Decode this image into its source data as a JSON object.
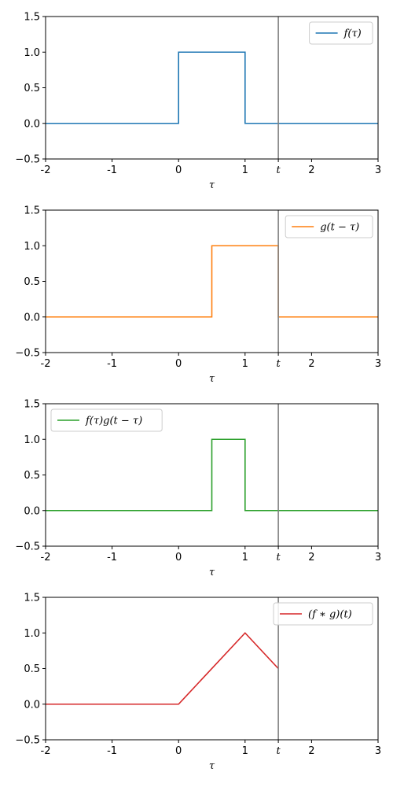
{
  "chart_data": [
    {
      "type": "line",
      "xlabel": "τ",
      "xlim": [
        -2,
        3
      ],
      "ylim": [
        -0.5,
        1.5
      ],
      "xticks": [
        {
          "v": -2,
          "label": "-2"
        },
        {
          "v": -1,
          "label": "-1"
        },
        {
          "v": 0,
          "label": "0"
        },
        {
          "v": 1,
          "label": "1"
        },
        {
          "v": 1.5,
          "label": "t",
          "italic": true
        },
        {
          "v": 2,
          "label": "2"
        },
        {
          "v": 3,
          "label": "3"
        }
      ],
      "yticks": [
        {
          "v": -0.5,
          "label": "−0.5"
        },
        {
          "v": 0,
          "label": "0.0"
        },
        {
          "v": 0.5,
          "label": "0.5"
        },
        {
          "v": 1,
          "label": "1.0"
        },
        {
          "v": 1.5,
          "label": "1.5"
        }
      ],
      "vline": {
        "x": 1.5,
        "color": "#808080"
      },
      "legend": "top-right",
      "series": [
        {
          "name": "f(τ)",
          "color": "#1f77b4",
          "x": [
            -2,
            0,
            0,
            1,
            1,
            3
          ],
          "y": [
            0,
            0,
            1,
            1,
            0,
            0
          ]
        }
      ]
    },
    {
      "type": "line",
      "xlabel": "τ",
      "xlim": [
        -2,
        3
      ],
      "ylim": [
        -0.5,
        1.5
      ],
      "xticks": [
        {
          "v": -2,
          "label": "-2"
        },
        {
          "v": -1,
          "label": "-1"
        },
        {
          "v": 0,
          "label": "0"
        },
        {
          "v": 1,
          "label": "1"
        },
        {
          "v": 1.5,
          "label": "t",
          "italic": true
        },
        {
          "v": 2,
          "label": "2"
        },
        {
          "v": 3,
          "label": "3"
        }
      ],
      "yticks": [
        {
          "v": -0.5,
          "label": "−0.5"
        },
        {
          "v": 0,
          "label": "0.0"
        },
        {
          "v": 0.5,
          "label": "0.5"
        },
        {
          "v": 1,
          "label": "1.0"
        },
        {
          "v": 1.5,
          "label": "1.5"
        }
      ],
      "vline": {
        "x": 1.5,
        "color": "#808080"
      },
      "legend": "top-right",
      "series": [
        {
          "name": "g(t − τ)",
          "color": "#ff7f0e",
          "x": [
            -2,
            0.5,
            0.5,
            1.5,
            1.5,
            3
          ],
          "y": [
            0,
            0,
            1,
            1,
            0,
            0
          ]
        }
      ]
    },
    {
      "type": "line",
      "xlabel": "τ",
      "xlim": [
        -2,
        3
      ],
      "ylim": [
        -0.5,
        1.5
      ],
      "xticks": [
        {
          "v": -2,
          "label": "-2"
        },
        {
          "v": -1,
          "label": "-1"
        },
        {
          "v": 0,
          "label": "0"
        },
        {
          "v": 1,
          "label": "1"
        },
        {
          "v": 1.5,
          "label": "t",
          "italic": true
        },
        {
          "v": 2,
          "label": "2"
        },
        {
          "v": 3,
          "label": "3"
        }
      ],
      "yticks": [
        {
          "v": -0.5,
          "label": "−0.5"
        },
        {
          "v": 0,
          "label": "0.0"
        },
        {
          "v": 0.5,
          "label": "0.5"
        },
        {
          "v": 1,
          "label": "1.0"
        },
        {
          "v": 1.5,
          "label": "1.5"
        }
      ],
      "vline": {
        "x": 1.5,
        "color": "#808080"
      },
      "legend": "top-left",
      "series": [
        {
          "name": "f(τ)g(t − τ)",
          "color": "#2ca02c",
          "x": [
            -2,
            0.5,
            0.5,
            1,
            1,
            3
          ],
          "y": [
            0,
            0,
            1,
            1,
            0,
            0
          ]
        }
      ]
    },
    {
      "type": "line",
      "xlabel": "τ",
      "xlim": [
        -2,
        3
      ],
      "ylim": [
        -0.5,
        1.5
      ],
      "xticks": [
        {
          "v": -2,
          "label": "-2"
        },
        {
          "v": -1,
          "label": "-1"
        },
        {
          "v": 0,
          "label": "0"
        },
        {
          "v": 1,
          "label": "1"
        },
        {
          "v": 1.5,
          "label": "t",
          "italic": true
        },
        {
          "v": 2,
          "label": "2"
        },
        {
          "v": 3,
          "label": "3"
        }
      ],
      "yticks": [
        {
          "v": -0.5,
          "label": "−0.5"
        },
        {
          "v": 0,
          "label": "0.0"
        },
        {
          "v": 0.5,
          "label": "0.5"
        },
        {
          "v": 1,
          "label": "1.0"
        },
        {
          "v": 1.5,
          "label": "1.5"
        }
      ],
      "vline": {
        "x": 1.5,
        "color": "#808080"
      },
      "legend": "top-right",
      "series": [
        {
          "name": "(f ∗ g)(t)",
          "color": "#d62728",
          "x": [
            -2,
            0,
            1,
            1.5
          ],
          "y": [
            0,
            0,
            1,
            0.5
          ]
        }
      ]
    }
  ]
}
